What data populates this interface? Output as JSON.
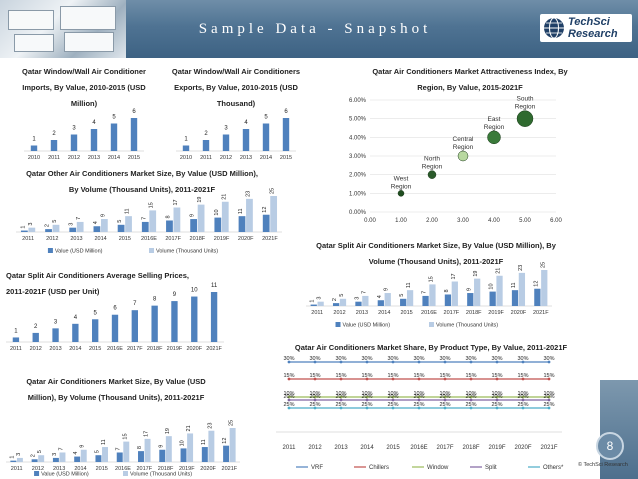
{
  "header": {
    "title": "Sample Data - Snapshot",
    "logo_line1": "TechSci",
    "logo_line2": "Research"
  },
  "page_number": "8",
  "copyright": "© TechSci Research",
  "colors": {
    "blue": "#4f81bd",
    "light_blue": "#b8cce4",
    "header": "#4f7393",
    "vrf": "#4f81bd",
    "chillers": "#c0504d",
    "window": "#9bbb59",
    "split": "#8064a2",
    "others": "#4bacc6"
  },
  "chart_data": [
    {
      "id": "imports",
      "type": "bar",
      "title": "Qatar Window/Wall Air Conditioner Imports, By Value, 2010-2015 (USD Million)",
      "categories": [
        "2010",
        "2011",
        "2012",
        "2013",
        "2014",
        "2015"
      ],
      "values": [
        1,
        2,
        3,
        4,
        5,
        6
      ]
    },
    {
      "id": "exports",
      "type": "bar",
      "title": "Qatar Window/Wall Air Conditioners Exports, By Value, 2010-2015 (USD Thousand)",
      "categories": [
        "2010",
        "2011",
        "2012",
        "2013",
        "2014",
        "2015"
      ],
      "values": [
        1,
        2,
        3,
        4,
        5,
        6
      ]
    },
    {
      "id": "other",
      "type": "bar",
      "title": "Qatar Other Air Conditioners Market Size, By Value (USD Million), By Volume (Thousand Units), 2011-2021F",
      "categories": [
        "2011",
        "2012",
        "2013",
        "2014",
        "2015",
        "2016E",
        "2017F",
        "2018F",
        "2019F",
        "2020F",
        "2021F"
      ],
      "series": [
        {
          "name": "Value (USD Million)",
          "values": [
            1,
            2,
            3,
            4,
            5,
            7,
            8,
            9,
            10,
            11,
            12
          ]
        },
        {
          "name": "Volume (Thousand Units)",
          "values": [
            3,
            5,
            7,
            9,
            11,
            15,
            17,
            19,
            21,
            23,
            25
          ]
        }
      ]
    },
    {
      "id": "attract",
      "type": "scatter",
      "title": "Qatar Air Conditioners Market Attractiveness Index, By Region, By Value, 2015-2021F",
      "xlim": [
        0,
        6
      ],
      "ylim": [
        0,
        6
      ],
      "x_ticks": [
        "0.00",
        "1.00",
        "2.00",
        "3.00",
        "4.00",
        "5.00",
        "6.00"
      ],
      "y_ticks": [
        "0.00%",
        "1.00%",
        "2.00%",
        "3.00%",
        "4.00%",
        "5.00%",
        "6.00%"
      ],
      "points": [
        {
          "label": "West Region",
          "x": 1.0,
          "y": 1.0,
          "size": 0.6
        },
        {
          "label": "North Region",
          "x": 2.0,
          "y": 2.0,
          "size": 0.8
        },
        {
          "label": "Central Region",
          "x": 3.0,
          "y": 3.0,
          "size": 1.0
        },
        {
          "label": "East Region",
          "x": 4.0,
          "y": 4.0,
          "size": 1.3
        },
        {
          "label": "South Region",
          "x": 5.0,
          "y": 5.0,
          "size": 1.6
        }
      ]
    },
    {
      "id": "split_avg",
      "type": "bar",
      "title": "Qatar Split Air Conditioners Average Selling Prices, 2011-2021F (USD per Unit)",
      "categories": [
        "2011",
        "2012",
        "2013",
        "2014",
        "2015",
        "2016E",
        "2017F",
        "2018F",
        "2019F",
        "2020F",
        "2021F"
      ],
      "values": [
        1,
        2,
        3,
        4,
        5,
        6,
        7,
        8,
        9,
        10,
        11
      ]
    },
    {
      "id": "split_size",
      "type": "bar",
      "title": "Qatar Split Air Conditioners Market Size, By Value (USD Million), By Volume (Thousand Units), 2011-2021F",
      "categories": [
        "2011",
        "2012",
        "2013",
        "2014",
        "2015",
        "2016E",
        "2017F",
        "2018F",
        "2019F",
        "2020F",
        "2021F"
      ],
      "series": [
        {
          "name": "Value (USD Million)",
          "values": [
            1,
            2,
            3,
            4,
            5,
            7,
            8,
            9,
            10,
            11,
            12
          ]
        },
        {
          "name": "Volume (Thousand Units)",
          "values": [
            3,
            5,
            7,
            9,
            11,
            15,
            17,
            19,
            21,
            23,
            25
          ]
        }
      ]
    },
    {
      "id": "total",
      "type": "bar",
      "title": "Qatar Air Conditioners Market Size, By Value (USD Million), By Volume (Thousand Units), 2011-2021F",
      "categories": [
        "2011",
        "2012",
        "2013",
        "2014",
        "2015",
        "2016E",
        "2017F",
        "2018F",
        "2019F",
        "2020F",
        "2021F"
      ],
      "series": [
        {
          "name": "Value (USD Million)",
          "values": [
            1,
            2,
            3,
            4,
            5,
            7,
            8,
            9,
            10,
            11,
            12
          ]
        },
        {
          "name": "Volume (Thousand Units)",
          "values": [
            3,
            5,
            7,
            9,
            11,
            15,
            17,
            19,
            21,
            23,
            25
          ]
        }
      ]
    },
    {
      "id": "share",
      "type": "line",
      "title": "Qatar Air Conditioners Market Share, By Product Type, By Value, 2011-2021F",
      "categories": [
        "2011",
        "2012",
        "2013",
        "2014",
        "2015",
        "2016E",
        "2017F",
        "2018F",
        "2019F",
        "2020F",
        "2021F"
      ],
      "series": [
        {
          "name": "VRF",
          "values": [
            30,
            30,
            30,
            30,
            30,
            30,
            30,
            30,
            30,
            30,
            30
          ]
        },
        {
          "name": "Chillers",
          "values": [
            15,
            15,
            15,
            15,
            15,
            15,
            15,
            15,
            15,
            15,
            15
          ]
        },
        {
          "name": "Window",
          "values": [
            10,
            10,
            10,
            10,
            10,
            10,
            10,
            10,
            10,
            10,
            10
          ]
        },
        {
          "name": "Split",
          "values": [
            20,
            20,
            20,
            20,
            20,
            20,
            20,
            20,
            20,
            20,
            20
          ]
        },
        {
          "name": "Others*",
          "values": [
            25,
            25,
            25,
            25,
            25,
            25,
            25,
            25,
            25,
            25,
            25
          ]
        }
      ]
    }
  ]
}
